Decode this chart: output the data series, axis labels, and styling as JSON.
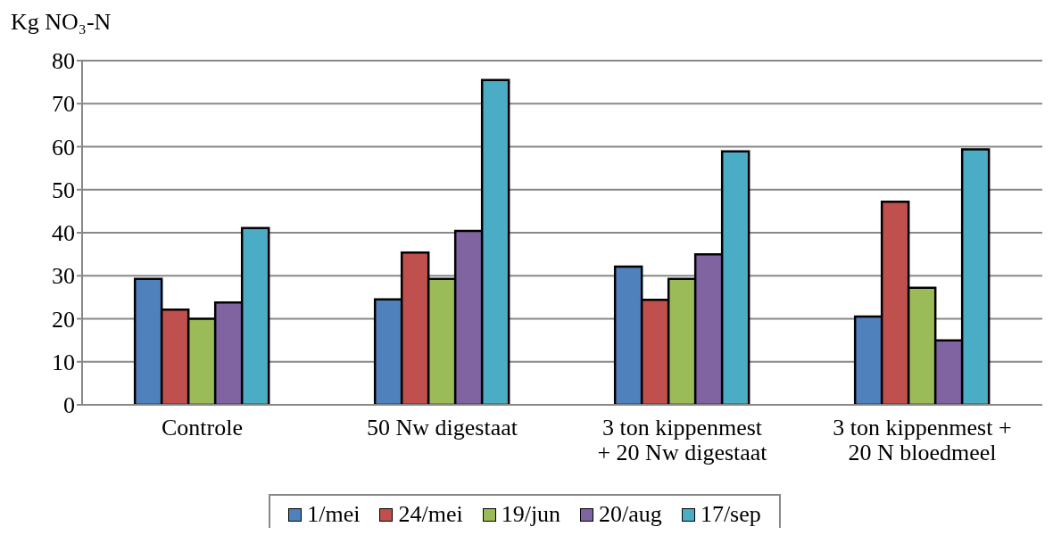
{
  "chart_data": {
    "type": "bar",
    "ylabel": "Kg NO₃-N",
    "categories": [
      "Controle",
      "50 Nw digestaat",
      "3 ton kippenmest\n+ 20 Nw digestaat",
      "3 ton kippenmest +\n20 N bloedmeel"
    ],
    "series": [
      {
        "name": "1/mei",
        "color": "#4f81bd",
        "values": [
          29.3,
          24.5,
          32.1,
          20.5
        ]
      },
      {
        "name": "24/mei",
        "color": "#c0504d",
        "values": [
          22.1,
          35.4,
          24.4,
          47.2
        ]
      },
      {
        "name": "19/jun",
        "color": "#9bbb59",
        "values": [
          20,
          29.3,
          29.3,
          27.2
        ]
      },
      {
        "name": "20/aug",
        "color": "#8064a2",
        "values": [
          23.8,
          40.4,
          35,
          15
        ]
      },
      {
        "name": "17/sep",
        "color": "#4bacc6",
        "values": [
          41.1,
          75.5,
          58.9,
          59.4
        ]
      }
    ],
    "ylim": [
      0,
      80
    ],
    "yticks": [
      0,
      10,
      20,
      30,
      40,
      50,
      60,
      70,
      80
    ],
    "grid": "y",
    "legend": "bottom"
  }
}
